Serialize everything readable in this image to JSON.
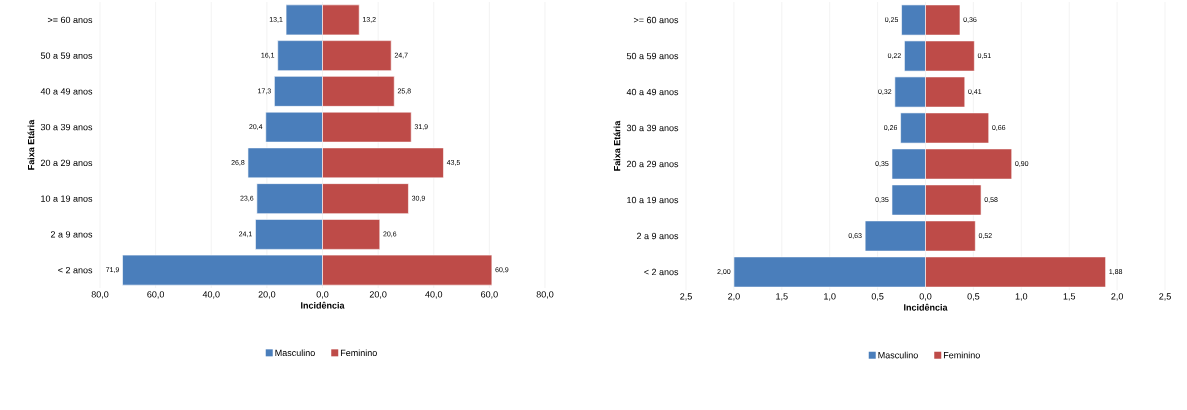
{
  "chart_data": [
    {
      "type": "bar",
      "orientation": "horizontal",
      "stacked": true,
      "xlabel": "Incidência",
      "ylabel": "Faixa Etária",
      "categories": [
        ">= 60 anos",
        "50 a 59 anos",
        "40 a 49 anos",
        "30 a 39 anos",
        "20 a 29 anos",
        "10 a 19 anos",
        "2 a 9 anos",
        "< 2 anos"
      ],
      "series": [
        {
          "name": "Masculino",
          "color": "#4a7ebb",
          "values": [
            -13.1,
            -16.1,
            -17.3,
            -20.4,
            -26.8,
            -23.6,
            -24.1,
            -71.9
          ]
        },
        {
          "name": "Feminino",
          "color": "#be4b48",
          "values": [
            13.2,
            24.7,
            25.8,
            31.9,
            43.5,
            30.9,
            20.6,
            60.9
          ],
          "value_labels": [
            "13,2",
            "24,7",
            "25,8",
            "31,9",
            "43,5",
            "30,9",
            "20,6",
            "60,9"
          ]
        }
      ],
      "annotations": [
        {
          "text": "13,1",
          "x": -13.1,
          "y": ">= 60 anos"
        },
        {
          "text": "16,1",
          "x": -16.1,
          "y": "50 a 59 anos"
        },
        {
          "text": "17,3",
          "x": -17.3,
          "y": "40 a 49 anos"
        },
        {
          "text": "20,4",
          "x": -20.4,
          "y": "30 a 39 anos"
        },
        {
          "text": "26,8",
          "x": -26.8,
          "y": "20 a 29 anos"
        },
        {
          "text": "23,6",
          "x": -23.6,
          "y": "10 a 19 anos"
        },
        {
          "text": "24,1",
          "x": -24.1,
          "y": "2 a 9 anos"
        },
        {
          "text": "71,9",
          "x": -71.9,
          "y": "< 2 anos"
        }
      ],
      "xlim": [
        -80,
        80
      ],
      "xticks": [
        {
          "value": -80,
          "label": "80,0"
        },
        {
          "value": -60,
          "label": "60,0"
        },
        {
          "value": -40,
          "label": "40,0"
        },
        {
          "value": -20,
          "label": "20,0"
        },
        {
          "value": 0,
          "label": "0,0"
        },
        {
          "value": 20,
          "label": "20,0"
        },
        {
          "value": 40,
          "label": "40,0"
        },
        {
          "value": 60,
          "label": "60,0"
        },
        {
          "value": 80,
          "label": "80,0"
        }
      ],
      "grid": "x",
      "legend": "bottom"
    },
    {
      "type": "bar",
      "orientation": "horizontal",
      "stacked": true,
      "xlabel": "Incidência",
      "ylabel": "Faixa Etária",
      "categories": [
        ">= 60 anos",
        "50 a 59 anos",
        "40 a 49 anos",
        "30 a 39 anos",
        "20 a 29 anos",
        "10 a 19 anos",
        "2 a 9 anos",
        "< 2 anos"
      ],
      "series": [
        {
          "name": "Masculino",
          "color": "#4a7ebb",
          "values": [
            -0.25,
            -0.22,
            -0.32,
            -0.26,
            -0.35,
            -0.35,
            -0.63,
            -2.0
          ]
        },
        {
          "name": "Feminino",
          "color": "#be4b48",
          "values": [
            0.36,
            0.51,
            0.41,
            0.66,
            0.9,
            0.58,
            0.52,
            1.88
          ],
          "value_labels": [
            "0,36",
            "0,51",
            "0,41",
            "0,66",
            "0,90",
            "0,58",
            "0,52",
            "1,88"
          ]
        }
      ],
      "annotations": [
        {
          "text": "0,25",
          "x": -0.25,
          "y": ">= 60 anos"
        },
        {
          "text": "0,22",
          "x": -0.22,
          "y": "50 a 59 anos"
        },
        {
          "text": "0,32",
          "x": -0.32,
          "y": "40 a 49 anos"
        },
        {
          "text": "0,26",
          "x": -0.26,
          "y": "30 a 39 anos"
        },
        {
          "text": "0,35",
          "x": -0.35,
          "y": "20 a 29 anos"
        },
        {
          "text": "0,35",
          "x": -0.35,
          "y": "10 a 19 anos"
        },
        {
          "text": "0,63",
          "x": -0.63,
          "y": "2 a 9 anos"
        },
        {
          "text": "2,00",
          "x": -2.0,
          "y": "< 2 anos"
        }
      ],
      "xlim": [
        -2.5,
        2.5
      ],
      "xticks": [
        {
          "value": -2.5,
          "label": "2,5"
        },
        {
          "value": -2.0,
          "label": "2,0"
        },
        {
          "value": -1.5,
          "label": "1,5"
        },
        {
          "value": -1.0,
          "label": "1,0"
        },
        {
          "value": -0.5,
          "label": "0,5"
        },
        {
          "value": 0,
          "label": "0,0"
        },
        {
          "value": 0.5,
          "label": "0,5"
        },
        {
          "value": 1.0,
          "label": "1,0"
        },
        {
          "value": 1.5,
          "label": "1,5"
        },
        {
          "value": 2.0,
          "label": "2,0"
        },
        {
          "value": 2.5,
          "label": "2,5"
        }
      ],
      "grid": "x",
      "legend": "bottom"
    }
  ]
}
